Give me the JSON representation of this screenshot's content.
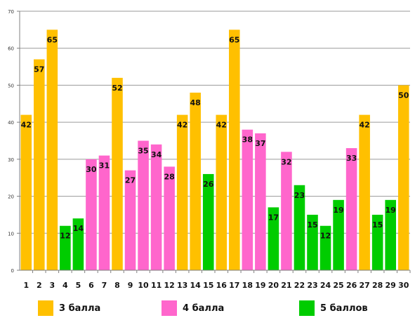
{
  "chart_data": {
    "type": "bar",
    "categories": [
      "1",
      "2",
      "3",
      "4",
      "5",
      "6",
      "7",
      "8",
      "9",
      "10",
      "11",
      "12",
      "13",
      "14",
      "15",
      "16",
      "17",
      "18",
      "19",
      "20",
      "21",
      "22",
      "23",
      "24",
      "25",
      "26",
      "27",
      "28",
      "29",
      "30"
    ],
    "values": [
      42,
      57,
      65,
      12,
      14,
      30,
      31,
      52,
      27,
      35,
      34,
      28,
      42,
      48,
      26,
      42,
      65,
      38,
      37,
      17,
      32,
      23,
      15,
      12,
      19,
      33,
      42,
      15,
      19,
      50
    ],
    "groups": [
      0,
      0,
      0,
      2,
      2,
      1,
      1,
      0,
      1,
      1,
      1,
      1,
      0,
      0,
      2,
      0,
      0,
      1,
      1,
      2,
      1,
      2,
      2,
      2,
      2,
      1,
      0,
      2,
      2,
      0
    ],
    "ylim": [
      0,
      70
    ],
    "yticks": [
      0,
      10,
      20,
      30,
      40,
      50,
      60,
      70
    ],
    "grid": true,
    "legend_position": "bottom",
    "legend": [
      {
        "label": "3 балла",
        "color": "#FFC000"
      },
      {
        "label": "4 балла",
        "color": "#FF66CC"
      },
      {
        "label": "5 баллов",
        "color": "#00CC00"
      }
    ],
    "title": "",
    "xlabel": "",
    "ylabel": ""
  }
}
